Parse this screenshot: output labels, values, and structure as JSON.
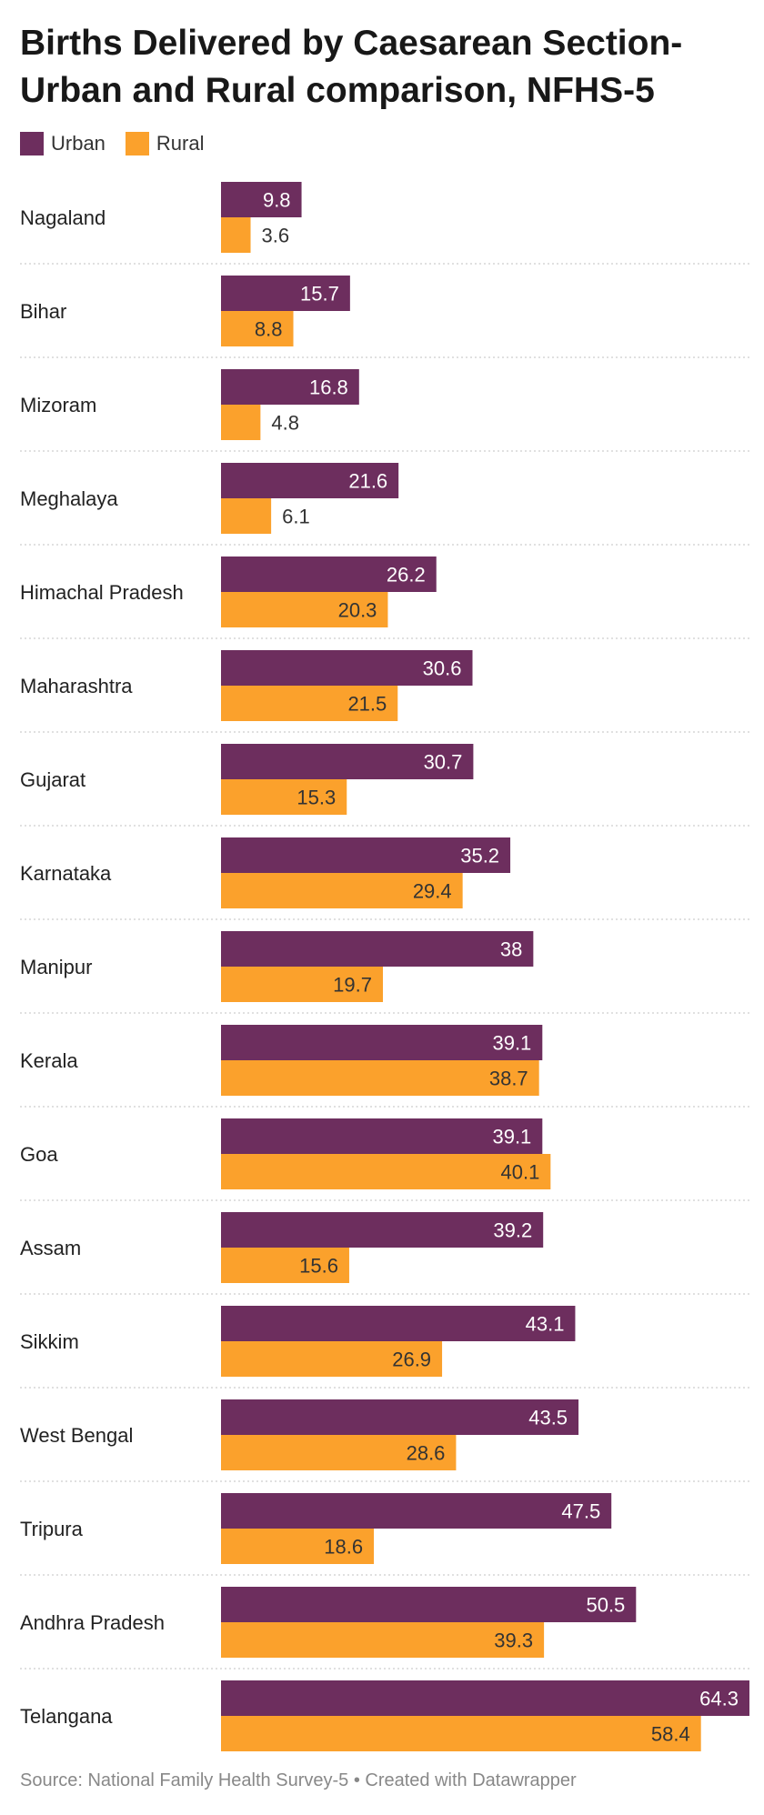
{
  "chart_data": {
    "type": "bar",
    "orientation": "horizontal",
    "title": "Births Delivered by Caesarean Section- Urban and Rural comparison, NFHS-5",
    "categories": [
      "Nagaland",
      "Bihar",
      "Mizoram",
      "Meghalaya",
      "Himachal Pradesh",
      "Maharashtra",
      "Gujarat",
      "Karnataka",
      "Manipur",
      "Kerala",
      "Goa",
      "Assam",
      "Sikkim",
      "West Bengal",
      "Tripura",
      "Andhra Pradesh",
      "Telangana"
    ],
    "series": [
      {
        "name": "Urban",
        "color": "#6d2e5e",
        "values": [
          9.8,
          15.7,
          16.8,
          21.6,
          26.2,
          30.6,
          30.7,
          35.2,
          38,
          39.1,
          39.1,
          39.2,
          43.1,
          43.5,
          47.5,
          50.5,
          64.3
        ]
      },
      {
        "name": "Rural",
        "color": "#fba12c",
        "values": [
          3.6,
          8.8,
          4.8,
          6.1,
          20.3,
          21.5,
          15.3,
          29.4,
          19.7,
          38.7,
          40.1,
          15.6,
          26.9,
          28.6,
          18.6,
          39.3,
          58.4
        ]
      }
    ],
    "xlim": [
      0,
      64.3
    ],
    "legend_position": "top-left",
    "grid": false
  },
  "footer": {
    "source": "Source: National Family Health Survey-5 • Created with Datawrapper"
  }
}
